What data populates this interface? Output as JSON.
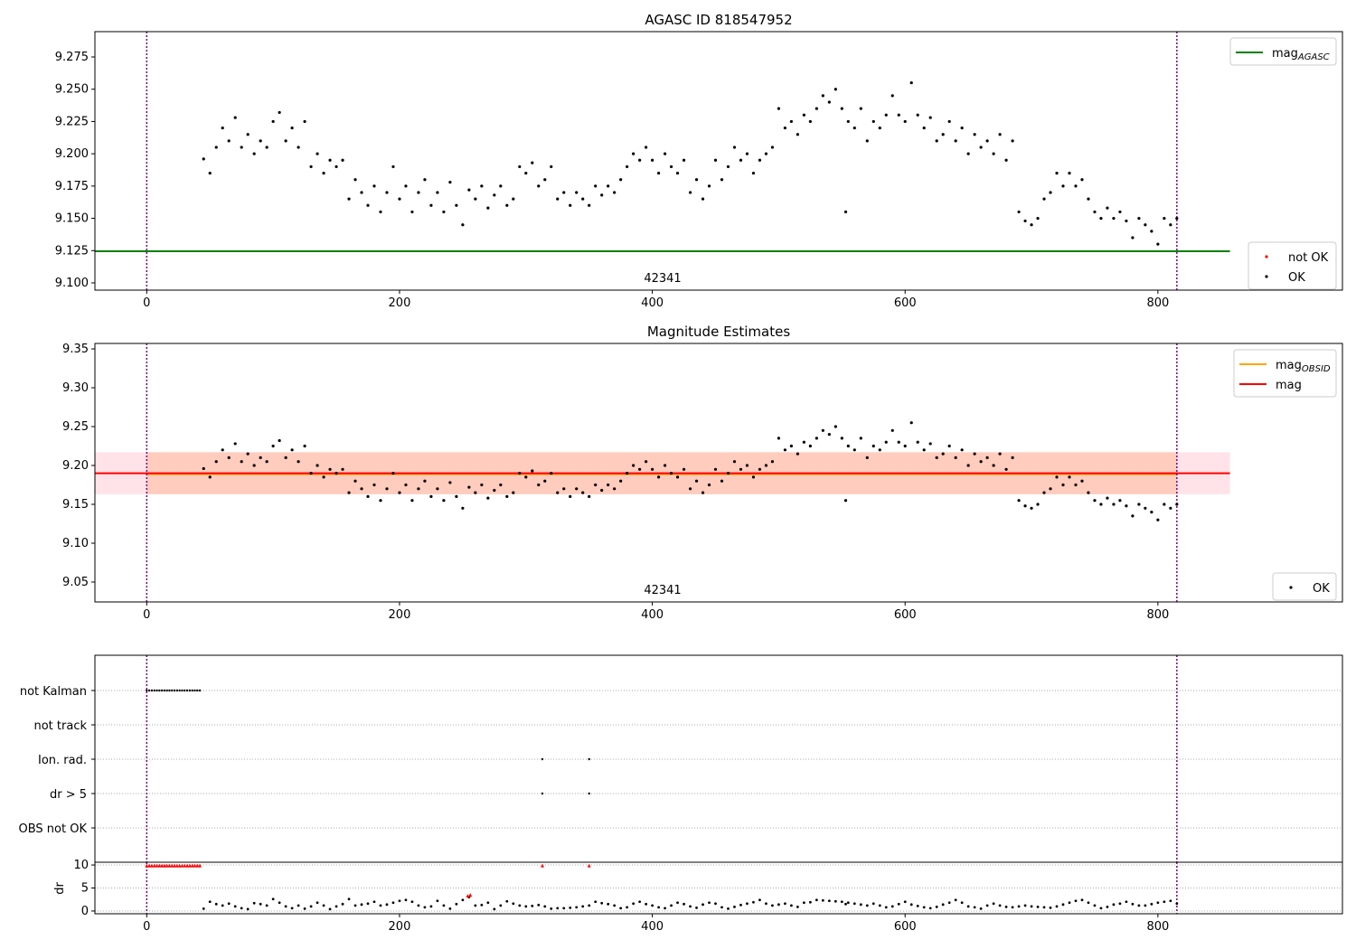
{
  "chart_data": [
    {
      "type": "scatter",
      "title": "AGASC ID 818547952",
      "annotation": "42341",
      "xlim": [
        -41,
        946
      ],
      "ylim": [
        9.0944,
        9.2946
      ],
      "xticks": [
        0,
        200,
        400,
        600,
        800
      ],
      "yticks": [
        9.1,
        9.125,
        9.15,
        9.175,
        9.2,
        9.225,
        9.25,
        9.275
      ],
      "legend_upper": [
        {
          "label": "mag",
          "sub": "AGASC",
          "color": "#008000"
        }
      ],
      "legend_lower": [
        {
          "label": "not OK",
          "color": "#ff0000"
        },
        {
          "label": "OK",
          "color": "#000000"
        }
      ],
      "mag_agasc": 9.1245,
      "obsid_range": [
        0,
        815
      ]
    },
    {
      "type": "scatter",
      "title": "Magnitude Estimates",
      "annotation": "42341",
      "xlim": [
        -41,
        946
      ],
      "ylim": [
        9.0244,
        9.357
      ],
      "xticks": [
        0,
        200,
        400,
        600,
        800
      ],
      "yticks": [
        9.05,
        9.1,
        9.15,
        9.2,
        9.25,
        9.3,
        9.35
      ],
      "legend_upper": [
        {
          "label": "mag",
          "sub": "OBSID",
          "color": "#ffa500"
        },
        {
          "label": "mag",
          "sub": "",
          "color": "#ff0000"
        }
      ],
      "legend_lower": [
        {
          "label": "OK",
          "color": "#000000"
        }
      ],
      "mag": 9.19,
      "mag_obsid": 9.19,
      "band": [
        9.163,
        9.217
      ]
    },
    {
      "type": "scatter",
      "flag_labels": [
        "not Kalman",
        "not track",
        "Ion. rad.",
        "dr > 5",
        "OBS not OK"
      ],
      "dr_label": "dr",
      "dr_ylim": [
        -0.6,
        10.6
      ],
      "dr_yticks": [
        0,
        5,
        10
      ],
      "xticks": [
        0,
        200,
        400,
        600,
        800
      ],
      "not_kalman_x": [
        0,
        2,
        4,
        6,
        8,
        10,
        12,
        14,
        16,
        18,
        20,
        22,
        24,
        26,
        28,
        30,
        32,
        34,
        36,
        38,
        40,
        42
      ],
      "ion_rad_x": [
        313,
        350
      ],
      "dr_gt5_x": [
        313,
        350
      ],
      "dr_red": [
        [
          0,
          9.8
        ],
        [
          2,
          9.8
        ],
        [
          4,
          9.8
        ],
        [
          6,
          9.8
        ],
        [
          8,
          9.8
        ],
        [
          10,
          9.8
        ],
        [
          12,
          9.8
        ],
        [
          14,
          9.8
        ],
        [
          16,
          9.8
        ],
        [
          18,
          9.8
        ],
        [
          20,
          9.8
        ],
        [
          22,
          9.8
        ],
        [
          24,
          9.8
        ],
        [
          26,
          9.8
        ],
        [
          28,
          9.8
        ],
        [
          30,
          9.8
        ],
        [
          32,
          9.8
        ],
        [
          34,
          9.8
        ],
        [
          36,
          9.8
        ],
        [
          38,
          9.8
        ],
        [
          40,
          9.8
        ],
        [
          42,
          9.8
        ],
        [
          313,
          9.8
        ],
        [
          350,
          9.8
        ],
        [
          254,
          3.2
        ],
        [
          256,
          3.4
        ]
      ]
    }
  ],
  "series": {
    "x": [
      45,
      50,
      55,
      60,
      65,
      70,
      75,
      80,
      85,
      90,
      95,
      100,
      105,
      110,
      115,
      120,
      125,
      130,
      135,
      140,
      145,
      150,
      155,
      160,
      165,
      170,
      175,
      180,
      185,
      190,
      195,
      200,
      205,
      210,
      215,
      220,
      225,
      230,
      235,
      240,
      245,
      250,
      255,
      260,
      265,
      270,
      275,
      280,
      285,
      290,
      295,
      300,
      305,
      310,
      315,
      320,
      325,
      330,
      335,
      340,
      345,
      350,
      355,
      360,
      365,
      370,
      375,
      380,
      385,
      390,
      395,
      400,
      405,
      410,
      415,
      420,
      425,
      430,
      435,
      440,
      445,
      450,
      455,
      460,
      465,
      470,
      475,
      480,
      485,
      490,
      495,
      500,
      505,
      510,
      515,
      520,
      525,
      530,
      535,
      540,
      545,
      550,
      555,
      560,
      565,
      570,
      575,
      580,
      585,
      590,
      595,
      600,
      605,
      610,
      615,
      620,
      625,
      630,
      635,
      640,
      645,
      650,
      655,
      660,
      665,
      670,
      675,
      680,
      685,
      690,
      695,
      700,
      705,
      710,
      715,
      720,
      725,
      730,
      735,
      740,
      745,
      750,
      755,
      760,
      765,
      770,
      775,
      780,
      785,
      790,
      795,
      800,
      805,
      810,
      815,
      553
    ],
    "mag": [
      9.196,
      9.185,
      9.205,
      9.22,
      9.21,
      9.228,
      9.205,
      9.215,
      9.2,
      9.21,
      9.205,
      9.225,
      9.232,
      9.21,
      9.22,
      9.205,
      9.225,
      9.19,
      9.2,
      9.185,
      9.195,
      9.19,
      9.195,
      9.165,
      9.18,
      9.17,
      9.16,
      9.175,
      9.155,
      9.17,
      9.19,
      9.165,
      9.175,
      9.155,
      9.17,
      9.18,
      9.16,
      9.17,
      9.155,
      9.178,
      9.16,
      9.145,
      9.172,
      9.165,
      9.175,
      9.158,
      9.168,
      9.175,
      9.16,
      9.165,
      9.19,
      9.185,
      9.193,
      9.175,
      9.18,
      9.19,
      9.165,
      9.17,
      9.16,
      9.17,
      9.165,
      9.16,
      9.175,
      9.168,
      9.175,
      9.17,
      9.18,
      9.19,
      9.2,
      9.195,
      9.205,
      9.195,
      9.185,
      9.2,
      9.19,
      9.185,
      9.195,
      9.17,
      9.18,
      9.165,
      9.175,
      9.195,
      9.18,
      9.19,
      9.205,
      9.195,
      9.2,
      9.185,
      9.195,
      9.2,
      9.205,
      9.235,
      9.22,
      9.225,
      9.215,
      9.23,
      9.225,
      9.235,
      9.245,
      9.24,
      9.25,
      9.235,
      9.225,
      9.22,
      9.235,
      9.21,
      9.225,
      9.22,
      9.23,
      9.245,
      9.23,
      9.225,
      9.255,
      9.23,
      9.22,
      9.228,
      9.21,
      9.215,
      9.225,
      9.21,
      9.22,
      9.2,
      9.215,
      9.205,
      9.21,
      9.2,
      9.215,
      9.195,
      9.21,
      9.155,
      9.148,
      9.145,
      9.15,
      9.165,
      9.17,
      9.185,
      9.175,
      9.185,
      9.175,
      9.18,
      9.165,
      9.155,
      9.15,
      9.158,
      9.15,
      9.155,
      9.148,
      9.135,
      9.15,
      9.145,
      9.14,
      9.13,
      9.15,
      9.145,
      9.15,
      9.155
    ],
    "dr": [
      0.5,
      2,
      1.5,
      1.2,
      1.6,
      1,
      0.6,
      0.4,
      1.7,
      1.5,
      1.2,
      2.6,
      1.8,
      1,
      0.6,
      1.2,
      0.5,
      1,
      1.8,
      1.2,
      0.4,
      1,
      1.5,
      2.6,
      1.2,
      1.4,
      1.6,
      2,
      1.2,
      1.4,
      1.8,
      2.2,
      2.4,
      2,
      1.2,
      0.8,
      1,
      2.2,
      1.2,
      0.5,
      1.5,
      2.4,
      3,
      1.2,
      1.3,
      1.8,
      0.4,
      1.2,
      2.1,
      1.6,
      1.2,
      1,
      1.1,
      1.3,
      1,
      0.5,
      0.6,
      0.6,
      0.7,
      0.8,
      1,
      1.2,
      2,
      1.7,
      1.5,
      1.2,
      0.6,
      0.8,
      1.6,
      2,
      1.5,
      1.2,
      0.8,
      0.6,
      1.2,
      1.8,
      1.5,
      1,
      0.7,
      1.4,
      1.8,
      1.6,
      0.8,
      0.5,
      0.9,
      1.3,
      1.6,
      1.9,
      2.4,
      1.6,
      1.2,
      1.4,
      1.6,
      1.2,
      0.9,
      1.8,
      1.9,
      2.4,
      2.3,
      2.2,
      2.1,
      2,
      1.8,
      1.6,
      1.4,
      1.2,
      1.6,
      1.2,
      0.8,
      1,
      1.5,
      2,
      1.4,
      1.1,
      0.8,
      0.6,
      0.9,
      1.4,
      1.8,
      2.4,
      1.8,
      1,
      0.8,
      0.5,
      1.2,
      1.6,
      1.2,
      0.9,
      0.8,
      1,
      1.2,
      1,
      0.9,
      0.8,
      0.7,
      1,
      1.4,
      1.8,
      2.2,
      2.4,
      1.8,
      1.2,
      0.6,
      0.9,
      1.4,
      1.6,
      2,
      1.5,
      1.2,
      1.2,
      1.5,
      1.8,
      2,
      2.2,
      1.6,
      1.5,
      1.6,
      1.4,
      1.2,
      1.6,
      2
    ]
  }
}
